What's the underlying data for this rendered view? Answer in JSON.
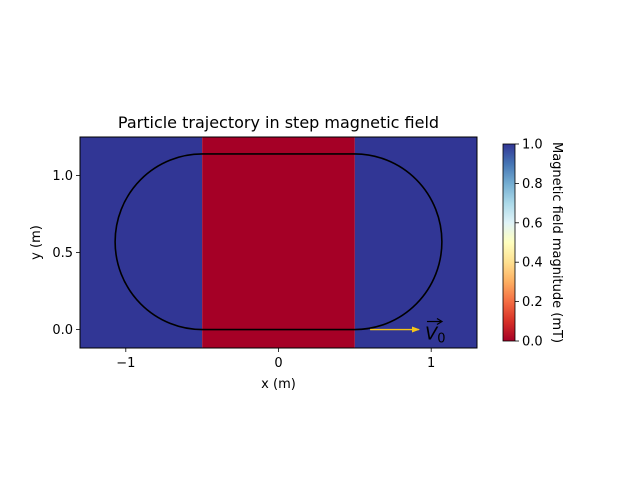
{
  "chart_data": {
    "type": "heatmap",
    "title": "Particle trajectory in step magnetic field",
    "xlabel": "x (m)",
    "ylabel": "y (m)",
    "xlim": [
      -1.3,
      1.3
    ],
    "ylim": [
      -0.12,
      1.25
    ],
    "xticks": [
      -1,
      0,
      1
    ],
    "xtick_labels": [
      "−1",
      "0",
      "1"
    ],
    "yticks": [
      0.0,
      0.5,
      1.0
    ],
    "ytick_labels": [
      "0.0",
      "0.5",
      "1.0"
    ],
    "field_regions": [
      {
        "x_range": [
          -1.3,
          -0.5
        ],
        "value": 1.0
      },
      {
        "x_range": [
          -0.5,
          0.5
        ],
        "value": 0.0
      },
      {
        "x_range": [
          0.5,
          1.3
        ],
        "value": 1.0
      }
    ],
    "trajectory": {
      "straight_y_bottom": 0.0,
      "straight_y_top": 1.14,
      "x_left": -0.5,
      "x_right": 0.5,
      "radius": 0.57,
      "color": "#000000"
    },
    "velocity_arrow": {
      "start": [
        0.6,
        0.0
      ],
      "end": [
        0.92,
        0.0
      ],
      "color": "#f5c518",
      "label": "V0"
    },
    "colorbar": {
      "label": "Magnetic field magnitude (mT)",
      "range": [
        0.0,
        1.0
      ],
      "ticks": [
        0.0,
        0.2,
        0.4,
        0.6,
        0.8,
        1.0
      ],
      "tick_labels": [
        "0.0",
        "0.2",
        "0.4",
        "0.6",
        "0.8",
        "1.0"
      ],
      "colormap": "RdYlBu",
      "low_color": "#a50026",
      "high_color": "#313695"
    },
    "grid": false
  }
}
